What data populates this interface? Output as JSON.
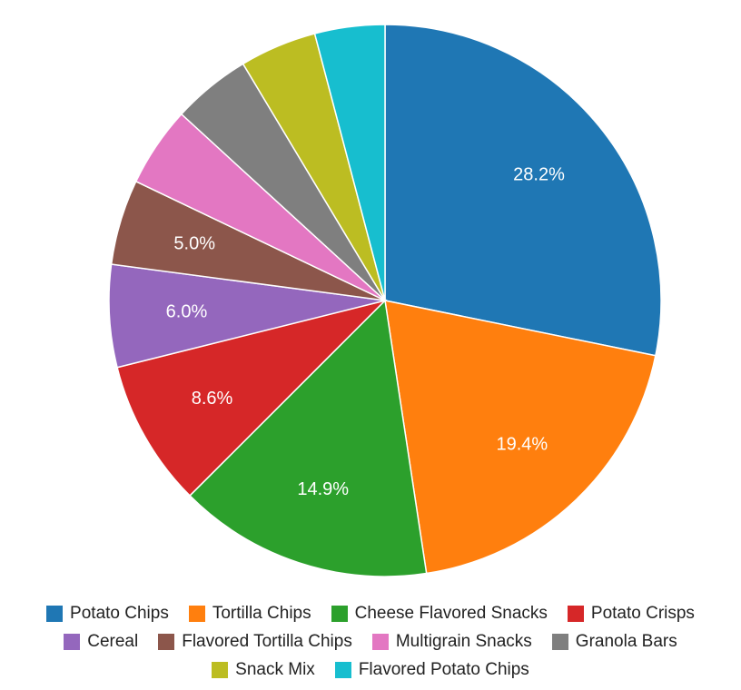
{
  "chart_data": {
    "type": "pie",
    "title": "",
    "slices": [
      {
        "label": "Potato Chips",
        "value": 28.2,
        "color": "#1f77b4",
        "display": "28.2%"
      },
      {
        "label": "Tortilla Chips",
        "value": 19.4,
        "color": "#ff7f0e",
        "display": "19.4%"
      },
      {
        "label": "Cheese Flavored Snacks",
        "value": 14.9,
        "color": "#2ca02c",
        "display": "14.9%"
      },
      {
        "label": "Potato Crisps",
        "value": 8.6,
        "color": "#d62728",
        "display": "8.6%"
      },
      {
        "label": "Cereal",
        "value": 6.0,
        "color": "#9467bd",
        "display": "6.0%"
      },
      {
        "label": "Flavored Tortilla Chips",
        "value": 5.0,
        "color": "#8c564b",
        "display": "5.0%"
      },
      {
        "label": "Multigrain Snacks",
        "value": 4.7,
        "color": "#e377c2",
        "display": ""
      },
      {
        "label": "Granola Bars",
        "value": 4.6,
        "color": "#7f7f7f",
        "display": ""
      },
      {
        "label": "Snack Mix",
        "value": 4.5,
        "color": "#bcbd22",
        "display": ""
      },
      {
        "label": "Flavored Potato Chips",
        "value": 4.1,
        "color": "#17becf",
        "display": ""
      }
    ],
    "legend_position": "bottom",
    "legend_rows": [
      [
        0,
        1,
        2,
        3
      ],
      [
        4,
        5,
        6,
        7
      ],
      [
        8,
        9
      ]
    ]
  }
}
